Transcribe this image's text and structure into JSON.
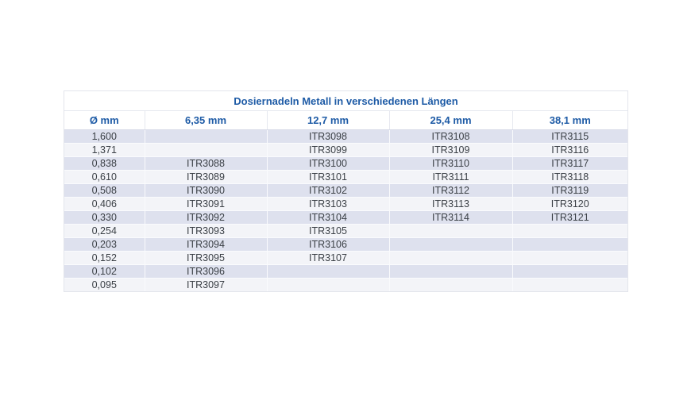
{
  "table": {
    "title": "Dosiernadeln Metall in verschiedenen Längen",
    "columns": [
      "Ø mm",
      "6,35 mm",
      "12,7 mm",
      "25,4 mm",
      "38,1 mm"
    ],
    "rows": [
      [
        "1,600",
        "",
        "ITR3098",
        "ITR3108",
        "ITR3115"
      ],
      [
        "1,371",
        "",
        "ITR3099",
        "ITR3109",
        "ITR3116"
      ],
      [
        "0,838",
        "ITR3088",
        "ITR3100",
        "ITR3110",
        "ITR3117"
      ],
      [
        "0,610",
        "ITR3089",
        "ITR3101",
        "ITR3111",
        "ITR3118"
      ],
      [
        "0,508",
        "ITR3090",
        "ITR3102",
        "ITR3112",
        "ITR3119"
      ],
      [
        "0,406",
        "ITR3091",
        "ITR3103",
        "ITR3113",
        "ITR3120"
      ],
      [
        "0,330",
        "ITR3092",
        "ITR3104",
        "ITR3114",
        "ITR3121"
      ],
      [
        "0,254",
        "ITR3093",
        "ITR3105",
        "",
        ""
      ],
      [
        "0,203",
        "ITR3094",
        "ITR3106",
        "",
        ""
      ],
      [
        "0,152",
        "ITR3095",
        "ITR3107",
        "",
        ""
      ],
      [
        "0,102",
        "ITR3096",
        "",
        "",
        ""
      ],
      [
        "0,095",
        "ITR3097",
        "",
        "",
        ""
      ]
    ],
    "colors": {
      "header_text": "#1e5ba6",
      "body_text": "#3b4046",
      "row_odd_background": "#dee1ee",
      "row_even_background": "#f3f4f8",
      "border": "#e3e5ec"
    }
  }
}
